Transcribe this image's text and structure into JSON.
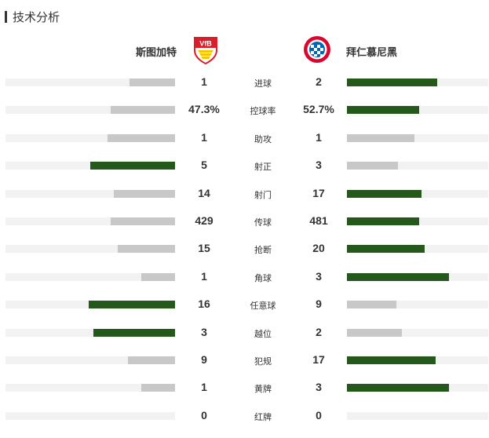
{
  "section": {
    "title": "技术分析"
  },
  "teams": {
    "home": {
      "name": "斯图加特",
      "logo_text": "VfB"
    },
    "away": {
      "name": "拜仁慕尼黑"
    }
  },
  "colors": {
    "leader": "#24591b",
    "trailer": "#c8c8c8",
    "track": "#f2f2f2"
  },
  "stats": [
    {
      "label": "进球",
      "home": "1",
      "away": "2",
      "home_fill": 0.27,
      "away_fill": 0.64,
      "leader": "away"
    },
    {
      "label": "控球率",
      "home": "47.3%",
      "away": "52.7%",
      "home_fill": 0.38,
      "away_fill": 0.51,
      "leader": "away"
    },
    {
      "label": "助攻",
      "home": "1",
      "away": "1",
      "home_fill": 0.4,
      "away_fill": 0.48,
      "leader": "none"
    },
    {
      "label": "射正",
      "home": "5",
      "away": "3",
      "home_fill": 0.5,
      "away_fill": 0.36,
      "leader": "home"
    },
    {
      "label": "射门",
      "home": "14",
      "away": "17",
      "home_fill": 0.36,
      "away_fill": 0.53,
      "leader": "away"
    },
    {
      "label": "传球",
      "home": "429",
      "away": "481",
      "home_fill": 0.38,
      "away_fill": 0.51,
      "leader": "away"
    },
    {
      "label": "抢断",
      "home": "15",
      "away": "20",
      "home_fill": 0.34,
      "away_fill": 0.55,
      "leader": "away"
    },
    {
      "label": "角球",
      "home": "1",
      "away": "3",
      "home_fill": 0.2,
      "away_fill": 0.72,
      "leader": "away"
    },
    {
      "label": "任意球",
      "home": "16",
      "away": "9",
      "home_fill": 0.51,
      "away_fill": 0.35,
      "leader": "home"
    },
    {
      "label": "越位",
      "home": "3",
      "away": "2",
      "home_fill": 0.48,
      "away_fill": 0.39,
      "leader": "home"
    },
    {
      "label": "犯规",
      "home": "9",
      "away": "17",
      "home_fill": 0.28,
      "away_fill": 0.63,
      "leader": "away"
    },
    {
      "label": "黄牌",
      "home": "1",
      "away": "3",
      "home_fill": 0.2,
      "away_fill": 0.72,
      "leader": "away"
    },
    {
      "label": "红牌",
      "home": "0",
      "away": "0",
      "home_fill": 0,
      "away_fill": 0,
      "leader": "none"
    }
  ]
}
